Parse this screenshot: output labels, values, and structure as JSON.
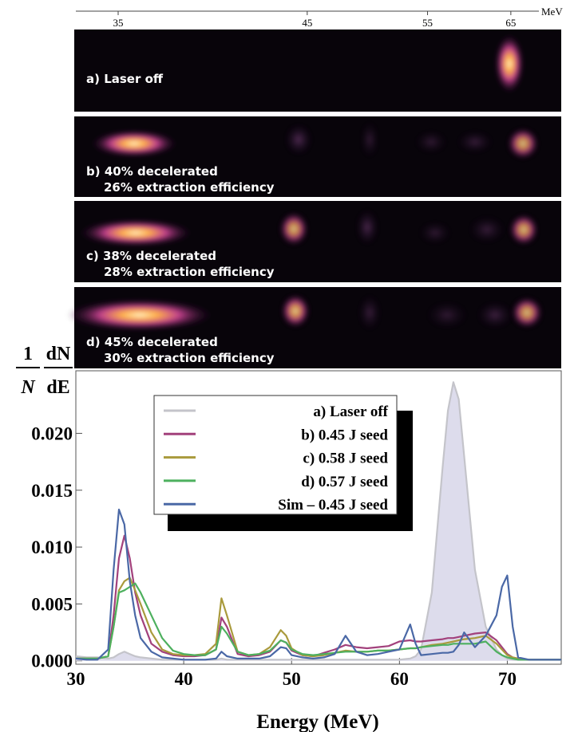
{
  "spectrometer": {
    "unit": "MeV",
    "ticks": [
      35,
      45,
      55,
      65
    ]
  },
  "panels": [
    {
      "lines": [
        "a) Laser off"
      ]
    },
    {
      "lines": [
        "b) 40% decelerated",
        "26% extraction efficiency"
      ]
    },
    {
      "lines": [
        "c) 38% decelerated",
        "28% extraction efficiency"
      ]
    },
    {
      "lines": [
        "d) 45% decelerated",
        "30% extraction efficiency"
      ]
    }
  ],
  "chart_data": {
    "type": "line",
    "ylabel": {
      "numerator": "1",
      "denominator": "N",
      "numerator2": "dN",
      "denominator2": "dE"
    },
    "xlabel": "Energy (MeV)",
    "xlim": [
      30,
      75
    ],
    "xticks": [
      30,
      40,
      50,
      60,
      70
    ],
    "ylim": [
      -0.0003,
      0.0255
    ],
    "yticks": [
      {
        "value": 0,
        "label": "0.000"
      },
      {
        "value": 0.005,
        "label": "0.005"
      },
      {
        "value": 0.01,
        "label": "0.010"
      },
      {
        "value": 0.015,
        "label": "0.015"
      },
      {
        "value": 0.02,
        "label": "0.020"
      }
    ],
    "legend": "upper-center",
    "x": [
      30,
      31,
      32,
      33,
      33.5,
      34,
      34.5,
      35,
      35.5,
      36,
      37,
      38,
      39,
      40,
      41,
      42,
      43,
      43.5,
      44,
      45,
      46,
      47,
      48,
      49,
      49.5,
      50,
      51,
      52,
      53,
      54,
      55,
      56,
      57,
      58,
      59,
      60,
      61,
      61.5,
      62,
      63,
      64,
      64.5,
      65,
      65.5,
      66,
      67,
      68,
      69,
      69.5,
      70,
      70.5,
      71,
      72,
      73,
      74,
      75
    ],
    "series": [
      {
        "name": "a) Laser off",
        "color": "#c4c4ca",
        "fill": "#d9d8ea",
        "values": [
          0.0004,
          0.0003,
          0.0003,
          0.0002,
          0.0003,
          0.0006,
          0.0008,
          0.0006,
          0.0004,
          0.0003,
          0.0002,
          0.0001,
          0.0001,
          0.0001,
          0.0001,
          0.0001,
          0.0001,
          0.0002,
          0.0001,
          0.0001,
          0.0001,
          0.0001,
          0.0001,
          0.0001,
          0.0001,
          0.0001,
          0.0001,
          0.0001,
          0.0001,
          0.0001,
          0.0001,
          0.0001,
          0.0001,
          0.0001,
          0.0001,
          0.0001,
          0.0002,
          0.0004,
          0.001,
          0.006,
          0.017,
          0.022,
          0.0245,
          0.023,
          0.018,
          0.008,
          0.003,
          0.001,
          0.0005,
          0.0002,
          0.0001,
          0.0001,
          0.0001,
          0.0001,
          0.0001,
          0.0001
        ]
      },
      {
        "name": "b) 0.45 J seed",
        "color": "#a2417c",
        "values": [
          0.0002,
          0.0002,
          0.0002,
          0.0004,
          0.004,
          0.009,
          0.011,
          0.009,
          0.006,
          0.004,
          0.0015,
          0.0008,
          0.0005,
          0.0004,
          0.0004,
          0.0005,
          0.001,
          0.0038,
          0.003,
          0.0006,
          0.0004,
          0.0005,
          0.0008,
          0.0018,
          0.0016,
          0.0009,
          0.0005,
          0.0004,
          0.0007,
          0.001,
          0.0014,
          0.0012,
          0.0011,
          0.0012,
          0.0013,
          0.0017,
          0.0018,
          0.0017,
          0.0017,
          0.0018,
          0.0019,
          0.002,
          0.002,
          0.0021,
          0.0022,
          0.0024,
          0.0025,
          0.0018,
          0.0012,
          0.0006,
          0.0003,
          0.0002,
          0.0001,
          0.0001,
          0.0001,
          0.0001
        ]
      },
      {
        "name": "c) 0.58 J seed",
        "color": "#a99a3c",
        "values": [
          0.0002,
          0.0002,
          0.0002,
          0.0004,
          0.003,
          0.0062,
          0.007,
          0.0073,
          0.0062,
          0.005,
          0.0025,
          0.001,
          0.0006,
          0.0005,
          0.0005,
          0.0006,
          0.0015,
          0.0055,
          0.004,
          0.0008,
          0.0005,
          0.0006,
          0.0012,
          0.0027,
          0.0022,
          0.0011,
          0.0005,
          0.0004,
          0.0005,
          0.0007,
          0.0009,
          0.0008,
          0.0008,
          0.0009,
          0.0009,
          0.001,
          0.0011,
          0.0011,
          0.0012,
          0.0014,
          0.0015,
          0.0016,
          0.0017,
          0.0018,
          0.0019,
          0.002,
          0.0022,
          0.0015,
          0.001,
          0.0005,
          0.0003,
          0.0002,
          0.0001,
          0.0001,
          0.0001,
          0.0001
        ]
      },
      {
        "name": "d) 0.57 J seed",
        "color": "#4db05e",
        "values": [
          0.0002,
          0.0002,
          0.0002,
          0.0004,
          0.003,
          0.006,
          0.0062,
          0.0065,
          0.0068,
          0.006,
          0.004,
          0.002,
          0.0009,
          0.0006,
          0.0005,
          0.0005,
          0.001,
          0.003,
          0.0024,
          0.0008,
          0.0005,
          0.0006,
          0.0009,
          0.0018,
          0.0016,
          0.001,
          0.0006,
          0.0005,
          0.0006,
          0.0007,
          0.0008,
          0.0008,
          0.0008,
          0.0009,
          0.0009,
          0.001,
          0.0011,
          0.0011,
          0.0012,
          0.0013,
          0.0014,
          0.0014,
          0.0015,
          0.0015,
          0.0015,
          0.0015,
          0.0017,
          0.0008,
          0.0005,
          0.0003,
          0.0002,
          0.0001,
          0.0001,
          0.0001,
          0.0001,
          0.0001
        ]
      },
      {
        "name": "Sim – 0.45 J seed",
        "color": "#4a68a6",
        "values": [
          0.0002,
          0.0001,
          0.0001,
          0.001,
          0.008,
          0.0133,
          0.012,
          0.007,
          0.004,
          0.002,
          0.0008,
          0.0003,
          0.0002,
          0.0001,
          0.0001,
          0.0001,
          0.0002,
          0.0008,
          0.0004,
          0.0002,
          0.0002,
          0.0002,
          0.0004,
          0.0012,
          0.0011,
          0.0005,
          0.0003,
          0.0002,
          0.0003,
          0.0006,
          0.0022,
          0.0008,
          0.0005,
          0.0006,
          0.0008,
          0.001,
          0.0032,
          0.0015,
          0.0005,
          0.0006,
          0.0007,
          0.0007,
          0.0008,
          0.0014,
          0.0025,
          0.0012,
          0.0022,
          0.004,
          0.0065,
          0.0075,
          0.003,
          0.0003,
          0.0001,
          0.0001,
          0.0001,
          0.0001
        ]
      }
    ]
  }
}
